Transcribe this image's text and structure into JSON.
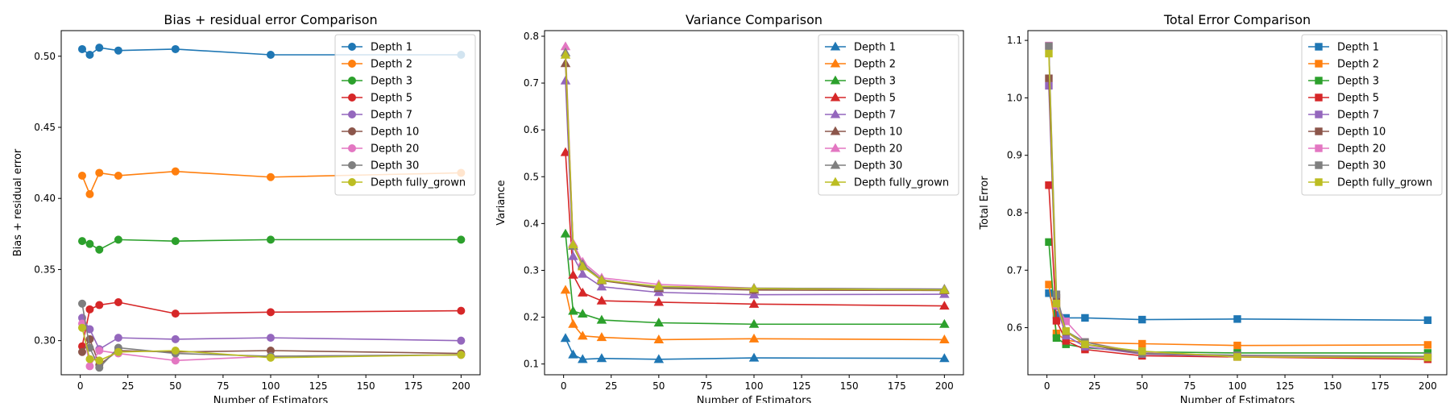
{
  "colors": [
    "#1f77b4",
    "#ff7f0e",
    "#2ca02c",
    "#d62728",
    "#9467bd",
    "#8c564b",
    "#e377c2",
    "#7f7f7f",
    "#bcbd22"
  ],
  "chart_data": [
    {
      "type": "line",
      "title": "Bias + residual error Comparison",
      "xlabel": "Number of Estimators",
      "ylabel": "Bias + residual error",
      "marker": "circle",
      "legend_position": "top-right",
      "grid": false,
      "xlim": [
        -10,
        210
      ],
      "ylim": [
        0.276,
        0.518
      ],
      "xticks": [
        0,
        25,
        50,
        75,
        100,
        125,
        150,
        175,
        200
      ],
      "yticks": [
        0.3,
        0.35,
        0.4,
        0.45,
        0.5
      ],
      "ytick_labels": [
        "0.30",
        "0.35",
        "0.40",
        "0.45",
        "0.50"
      ],
      "x": [
        1,
        5,
        10,
        20,
        50,
        100,
        200
      ],
      "series": [
        {
          "name": "Depth 1",
          "values": [
            0.505,
            0.501,
            0.506,
            0.504,
            0.505,
            0.501,
            0.501
          ]
        },
        {
          "name": "Depth 2",
          "values": [
            0.416,
            0.403,
            0.418,
            0.416,
            0.419,
            0.415,
            0.418
          ]
        },
        {
          "name": "Depth 3",
          "values": [
            0.37,
            0.368,
            0.364,
            0.371,
            0.37,
            0.371,
            0.371
          ]
        },
        {
          "name": "Depth 5",
          "values": [
            0.296,
            0.322,
            0.325,
            0.327,
            0.319,
            0.32,
            0.321
          ]
        },
        {
          "name": "Depth 7",
          "values": [
            0.316,
            0.308,
            0.294,
            0.302,
            0.301,
            0.302,
            0.3
          ]
        },
        {
          "name": "Depth 10",
          "values": [
            0.292,
            0.301,
            0.283,
            0.293,
            0.292,
            0.293,
            0.291
          ]
        },
        {
          "name": "Depth 20",
          "values": [
            0.312,
            0.282,
            0.293,
            0.291,
            0.286,
            0.289,
            0.29
          ]
        },
        {
          "name": "Depth 30",
          "values": [
            0.326,
            0.295,
            0.281,
            0.295,
            0.291,
            0.289,
            0.29
          ]
        },
        {
          "name": "Depth fully_grown",
          "values": [
            0.309,
            0.287,
            0.286,
            0.292,
            0.293,
            0.288,
            0.29
          ]
        }
      ]
    },
    {
      "type": "line",
      "title": "Variance Comparison",
      "xlabel": "Number of Estimators",
      "ylabel": "Variance",
      "marker": "triangle",
      "legend_position": "top-right",
      "grid": false,
      "xlim": [
        -10,
        210
      ],
      "ylim": [
        0.077,
        0.812
      ],
      "xticks": [
        0,
        25,
        50,
        75,
        100,
        125,
        150,
        175,
        200
      ],
      "yticks": [
        0.1,
        0.2,
        0.3,
        0.4,
        0.5,
        0.6,
        0.7,
        0.8
      ],
      "ytick_labels": [
        "0.1",
        "0.2",
        "0.3",
        "0.4",
        "0.5",
        "0.6",
        "0.7",
        "0.8"
      ],
      "x": [
        1,
        5,
        10,
        20,
        50,
        100,
        200
      ],
      "series": [
        {
          "name": "Depth 1",
          "values": [
            0.155,
            0.12,
            0.11,
            0.112,
            0.11,
            0.113,
            0.112
          ]
        },
        {
          "name": "Depth 2",
          "values": [
            0.258,
            0.185,
            0.16,
            0.157,
            0.152,
            0.154,
            0.152
          ]
        },
        {
          "name": "Depth 3",
          "values": [
            0.378,
            0.213,
            0.207,
            0.194,
            0.188,
            0.185,
            0.185
          ]
        },
        {
          "name": "Depth 5",
          "values": [
            0.552,
            0.29,
            0.252,
            0.235,
            0.232,
            0.228,
            0.224
          ]
        },
        {
          "name": "Depth 7",
          "values": [
            0.705,
            0.33,
            0.292,
            0.265,
            0.253,
            0.248,
            0.249
          ]
        },
        {
          "name": "Depth 10",
          "values": [
            0.742,
            0.352,
            0.31,
            0.278,
            0.262,
            0.258,
            0.257
          ]
        },
        {
          "name": "Depth 20",
          "values": [
            0.778,
            0.358,
            0.318,
            0.284,
            0.27,
            0.262,
            0.26
          ]
        },
        {
          "name": "Depth 30",
          "values": [
            0.765,
            0.352,
            0.313,
            0.28,
            0.264,
            0.262,
            0.26
          ]
        },
        {
          "name": "Depth fully_grown",
          "values": [
            0.76,
            0.355,
            0.308,
            0.279,
            0.266,
            0.261,
            0.258
          ]
        }
      ]
    },
    {
      "type": "line",
      "title": "Total Error Comparison",
      "xlabel": "Number of Estimators",
      "ylabel": "Total Error",
      "marker": "square",
      "legend_position": "top-right",
      "grid": false,
      "xlim": [
        -10,
        210
      ],
      "ylim": [
        0.518,
        1.117
      ],
      "xticks": [
        0,
        25,
        50,
        75,
        100,
        125,
        150,
        175,
        200
      ],
      "yticks": [
        0.6,
        0.7,
        0.8,
        0.9,
        1.0,
        1.1
      ],
      "ytick_labels": [
        "0.6",
        "0.7",
        "0.8",
        "0.9",
        "1.0",
        "1.1"
      ],
      "x": [
        1,
        5,
        10,
        20,
        50,
        100,
        200
      ],
      "series": [
        {
          "name": "Depth 1",
          "values": [
            0.66,
            0.622,
            0.617,
            0.617,
            0.614,
            0.615,
            0.613
          ]
        },
        {
          "name": "Depth 2",
          "values": [
            0.675,
            0.59,
            0.578,
            0.574,
            0.572,
            0.569,
            0.57
          ]
        },
        {
          "name": "Depth 3",
          "values": [
            0.749,
            0.582,
            0.571,
            0.565,
            0.558,
            0.556,
            0.556
          ]
        },
        {
          "name": "Depth 5",
          "values": [
            0.848,
            0.612,
            0.577,
            0.562,
            0.551,
            0.549,
            0.545
          ]
        },
        {
          "name": "Depth 7",
          "values": [
            1.021,
            0.638,
            0.586,
            0.567,
            0.554,
            0.55,
            0.549
          ]
        },
        {
          "name": "Depth 10",
          "values": [
            1.034,
            0.652,
            0.593,
            0.571,
            0.555,
            0.551,
            0.548
          ]
        },
        {
          "name": "Depth 20",
          "values": [
            1.091,
            0.64,
            0.611,
            0.575,
            0.556,
            0.551,
            0.55
          ]
        },
        {
          "name": "Depth 30",
          "values": [
            1.09,
            0.658,
            0.594,
            0.575,
            0.555,
            0.552,
            0.55
          ]
        },
        {
          "name": "Depth fully_grown",
          "values": [
            1.077,
            0.642,
            0.594,
            0.571,
            0.559,
            0.549,
            0.548
          ]
        }
      ]
    }
  ]
}
